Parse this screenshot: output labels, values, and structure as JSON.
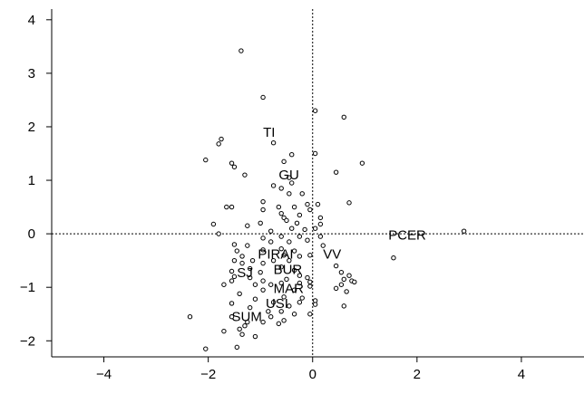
{
  "chart_data": {
    "type": "scatter",
    "title": "",
    "xlabel": "",
    "ylabel": "",
    "xlim": [
      -5,
      5.2
    ],
    "ylim": [
      -2.3,
      4.2
    ],
    "xticks": [
      -4,
      -2,
      0,
      2,
      4
    ],
    "xtick_labels": [
      "−4",
      "−2",
      "0",
      "2",
      "4"
    ],
    "yticks": [
      -2,
      -1,
      0,
      1,
      2,
      3,
      4
    ],
    "ytick_labels": [
      "−2",
      "−1",
      "0",
      "1",
      "2",
      "3",
      "4"
    ],
    "reference_lines": {
      "x": 0,
      "y": 0,
      "style": "dotted"
    },
    "labels": [
      {
        "text": "TI",
        "x": -0.95,
        "y": 1.9
      },
      {
        "text": "GU",
        "x": -0.65,
        "y": 1.1
      },
      {
        "text": "PCER",
        "x": 1.45,
        "y": -0.02
      },
      {
        "text": "PIRAI",
        "x": -1.05,
        "y": -0.38
      },
      {
        "text": "VV",
        "x": 0.2,
        "y": -0.38
      },
      {
        "text": "SJ",
        "x": -1.45,
        "y": -0.73
      },
      {
        "text": "BUR",
        "x": -0.75,
        "y": -0.67
      },
      {
        "text": "MAR",
        "x": -0.75,
        "y": -1.02
      },
      {
        "text": "USI",
        "x": -0.9,
        "y": -1.3
      },
      {
        "text": "SUM",
        "x": -1.55,
        "y": -1.55
      }
    ],
    "points": [
      [
        -1.37,
        3.42
      ],
      [
        -0.95,
        2.55
      ],
      [
        0.05,
        2.3
      ],
      [
        0.6,
        2.18
      ],
      [
        -1.75,
        1.77
      ],
      [
        -1.8,
        1.68
      ],
      [
        -0.75,
        1.7
      ],
      [
        -2.05,
        1.38
      ],
      [
        -1.55,
        1.32
      ],
      [
        -1.5,
        1.25
      ],
      [
        -0.4,
        1.48
      ],
      [
        0.05,
        1.5
      ],
      [
        -0.55,
        1.35
      ],
      [
        0.95,
        1.32
      ],
      [
        0.45,
        1.15
      ],
      [
        -1.3,
        1.1
      ],
      [
        -0.45,
        1.05
      ],
      [
        -0.75,
        0.9
      ],
      [
        -0.6,
        0.85
      ],
      [
        -0.4,
        0.95
      ],
      [
        -0.45,
        0.75
      ],
      [
        -0.2,
        0.75
      ],
      [
        -0.95,
        0.6
      ],
      [
        0.7,
        0.58
      ],
      [
        -1.65,
        0.5
      ],
      [
        -1.55,
        0.5
      ],
      [
        -0.95,
        0.45
      ],
      [
        -0.65,
        0.5
      ],
      [
        -0.35,
        0.5
      ],
      [
        -0.1,
        0.55
      ],
      [
        0.1,
        0.55
      ],
      [
        -0.05,
        0.45
      ],
      [
        -0.6,
        0.38
      ],
      [
        -0.55,
        0.3
      ],
      [
        -0.25,
        0.35
      ],
      [
        0.15,
        0.3
      ],
      [
        -1.9,
        0.18
      ],
      [
        -1.25,
        0.15
      ],
      [
        -1.0,
        0.2
      ],
      [
        -0.5,
        0.25
      ],
      [
        -0.3,
        0.2
      ],
      [
        0.15,
        0.18
      ],
      [
        -0.8,
        0.05
      ],
      [
        -0.4,
        0.1
      ],
      [
        -0.15,
        0.08
      ],
      [
        0.05,
        0.1
      ],
      [
        -1.8,
        0.0
      ],
      [
        -0.95,
        -0.08
      ],
      [
        -0.6,
        -0.05
      ],
      [
        -0.25,
        -0.05
      ],
      [
        0.15,
        -0.05
      ],
      [
        -0.8,
        -0.15
      ],
      [
        -0.45,
        -0.15
      ],
      [
        -0.1,
        -0.12
      ],
      [
        -1.5,
        -0.2
      ],
      [
        -1.25,
        -0.22
      ],
      [
        -0.6,
        -0.28
      ],
      [
        0.2,
        -0.22
      ],
      [
        -1.45,
        -0.32
      ],
      [
        -0.95,
        -0.3
      ],
      [
        -0.35,
        -0.32
      ],
      [
        -1.35,
        -0.42
      ],
      [
        -0.55,
        -0.4
      ],
      [
        -0.25,
        -0.42
      ],
      [
        -0.05,
        -0.4
      ],
      [
        -1.5,
        -0.5
      ],
      [
        -1.15,
        -0.5
      ],
      [
        -0.75,
        -0.5
      ],
      [
        -0.45,
        -0.5
      ],
      [
        -1.35,
        -0.55
      ],
      [
        -0.95,
        -0.55
      ],
      [
        0.45,
        -0.6
      ],
      [
        -1.55,
        -0.7
      ],
      [
        -1.2,
        -0.65
      ],
      [
        -0.6,
        -0.62
      ],
      [
        -0.35,
        -0.68
      ],
      [
        -1.5,
        -0.8
      ],
      [
        -1.0,
        -0.72
      ],
      [
        -0.25,
        -0.78
      ],
      [
        0.55,
        -0.72
      ],
      [
        0.7,
        -0.78
      ],
      [
        -1.55,
        -0.88
      ],
      [
        -1.2,
        -0.82
      ],
      [
        -0.95,
        -0.88
      ],
      [
        -0.5,
        -0.85
      ],
      [
        -0.1,
        -0.82
      ],
      [
        0.6,
        -0.85
      ],
      [
        0.75,
        -0.88
      ],
      [
        -1.7,
        -0.95
      ],
      [
        -1.1,
        -0.95
      ],
      [
        -0.8,
        -0.95
      ],
      [
        -0.6,
        -0.92
      ],
      [
        -0.25,
        -0.92
      ],
      [
        -0.05,
        -0.9
      ],
      [
        0.55,
        -0.95
      ],
      [
        0.8,
        -0.9
      ],
      [
        -0.05,
        -0.98
      ],
      [
        0.45,
        -1.02
      ],
      [
        -1.4,
        -1.12
      ],
      [
        -0.95,
        -1.05
      ],
      [
        -0.35,
        -1.05
      ],
      [
        0.65,
        -1.08
      ],
      [
        -1.1,
        -1.22
      ],
      [
        -0.55,
        -1.18
      ],
      [
        -0.2,
        -1.2
      ],
      [
        -1.55,
        -1.3
      ],
      [
        -0.75,
        -1.28
      ],
      [
        -0.25,
        -1.28
      ],
      [
        0.05,
        -1.25
      ],
      [
        -1.2,
        -1.38
      ],
      [
        -0.45,
        -1.35
      ],
      [
        0.05,
        -1.32
      ],
      [
        0.6,
        -1.35
      ],
      [
        -0.85,
        -1.45
      ],
      [
        -0.6,
        -1.45
      ],
      [
        -0.35,
        -1.5
      ],
      [
        -0.05,
        -1.5
      ],
      [
        -1.55,
        -1.55
      ],
      [
        -0.8,
        -1.55
      ],
      [
        -0.55,
        -1.62
      ],
      [
        -1.25,
        -1.65
      ],
      [
        -0.95,
        -1.65
      ],
      [
        -0.65,
        -1.68
      ],
      [
        -1.3,
        -1.72
      ],
      [
        -1.4,
        -1.78
      ],
      [
        -1.7,
        -1.82
      ],
      [
        -1.35,
        -1.88
      ],
      [
        -1.1,
        -1.92
      ],
      [
        -2.35,
        -1.55
      ],
      [
        -1.45,
        -2.12
      ],
      [
        -2.05,
        -2.15
      ],
      [
        2.9,
        0.05
      ],
      [
        1.55,
        -0.45
      ]
    ]
  }
}
